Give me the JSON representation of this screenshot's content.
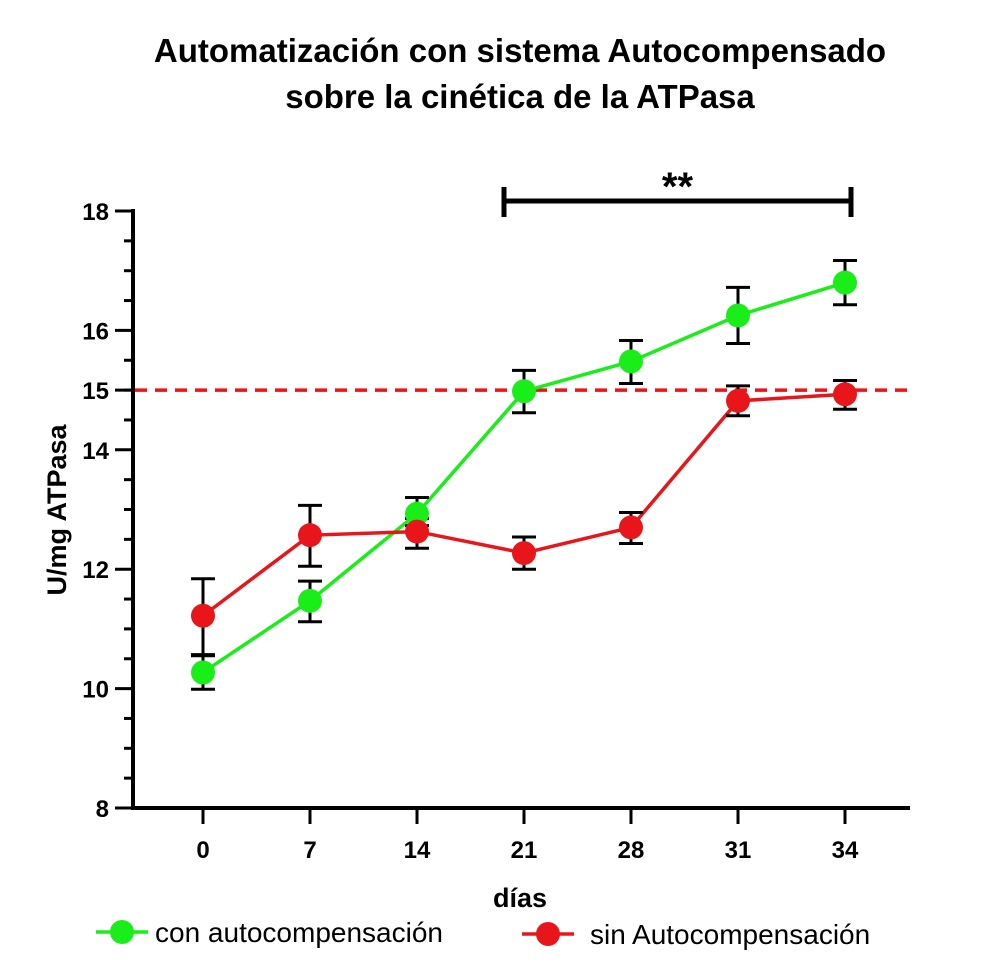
{
  "chart_data": {
    "type": "line",
    "title": [
      "Automatización con sistema Autocompensado",
      "sobre la cinética de la ATPasa"
    ],
    "xlabel": "días",
    "ylabel": "U/mg ATPasa",
    "categories": [
      "0",
      "7",
      "14",
      "21",
      "28",
      "31",
      "34"
    ],
    "ylim": [
      8,
      18
    ],
    "yticks": [
      "8",
      "10",
      "12",
      "14",
      "15",
      "16",
      "18"
    ],
    "reference_line": {
      "y": 15,
      "style": "dashed",
      "color": "#e8161b"
    },
    "significance": {
      "label": "**",
      "from_category": "21",
      "to_category": "34"
    },
    "series": [
      {
        "name": "con autocompensación",
        "color": "#19ee19",
        "values": [
          10.27,
          11.47,
          12.93,
          14.98,
          15.48,
          16.25,
          16.8
        ],
        "err_low": [
          0.28,
          0.35,
          0.2,
          0.36,
          0.37,
          0.47,
          0.37
        ],
        "err_high": [
          0.28,
          0.33,
          0.27,
          0.35,
          0.35,
          0.47,
          0.37
        ]
      },
      {
        "name": "sin Autocompensación",
        "color": "#e8161b",
        "values": [
          11.22,
          12.57,
          12.63,
          12.27,
          12.7,
          14.82,
          14.93
        ],
        "err_low": [
          0.65,
          0.52,
          0.28,
          0.27,
          0.27,
          0.25,
          0.25
        ],
        "err_high": [
          0.62,
          0.5,
          0.22,
          0.27,
          0.25,
          0.25,
          0.23
        ]
      }
    ],
    "legend": {
      "position": "bottom"
    },
    "grid": false
  }
}
